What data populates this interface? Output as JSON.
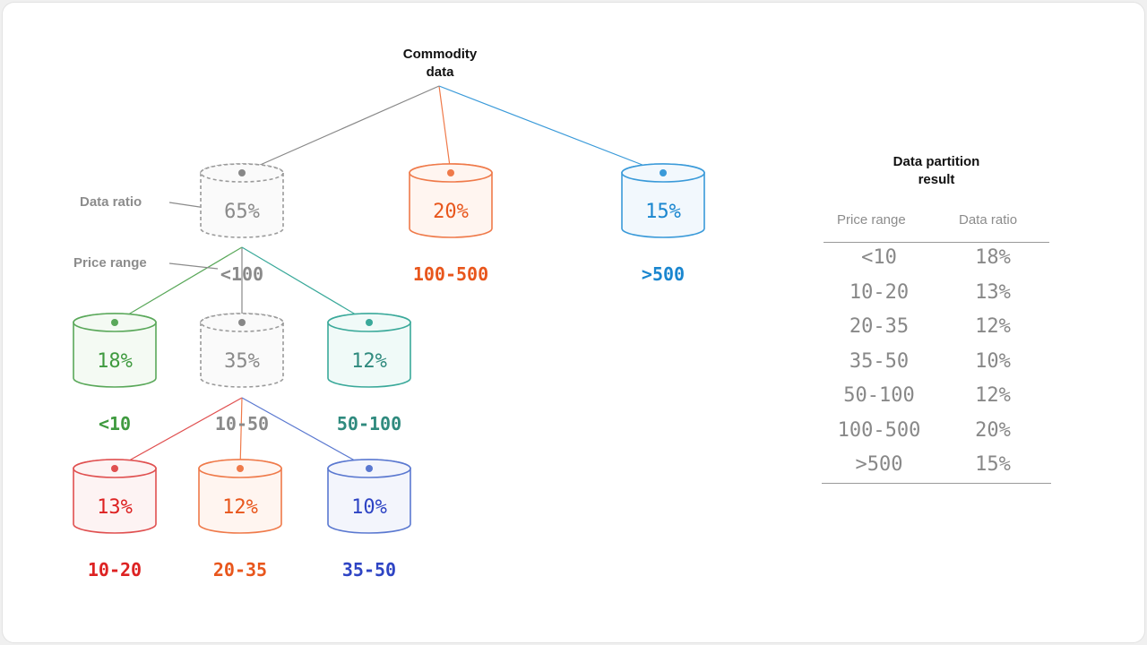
{
  "root": {
    "line1": "Commodity",
    "line2": "data"
  },
  "annotations": {
    "ratio": "Data ratio",
    "price": "Price range"
  },
  "level1": [
    {
      "percent": "65%",
      "range": "<100",
      "color": "#9a9a9a",
      "fill": "#fafafa",
      "dashed": true
    },
    {
      "percent": "20%",
      "range": "100-500",
      "color": "#ef7a4a",
      "fill": "#fff5f0",
      "dashed": false
    },
    {
      "percent": "15%",
      "range": ">500",
      "color": "#3a9ad9",
      "fill": "#f2f8fd",
      "dashed": false
    }
  ],
  "level2": [
    {
      "percent": "18%",
      "range": "<10",
      "color": "#5aa85a",
      "fill": "#f4faf3",
      "dashed": false
    },
    {
      "percent": "35%",
      "range": "10-50",
      "color": "#9a9a9a",
      "fill": "#fafafa",
      "dashed": true
    },
    {
      "percent": "12%",
      "range": "50-100",
      "color": "#3aa99a",
      "fill": "#f0faf8",
      "dashed": false
    }
  ],
  "level3": [
    {
      "percent": "13%",
      "range": "10-20",
      "color": "#e05050",
      "fill": "#fdf3f3",
      "dashed": false
    },
    {
      "percent": "12%",
      "range": "20-35",
      "color": "#ef7a4a",
      "fill": "#fff5f0",
      "dashed": false
    },
    {
      "percent": "10%",
      "range": "35-50",
      "color": "#5a78d0",
      "fill": "#f3f5fc",
      "dashed": false
    }
  ],
  "range_colors": {
    "gray": "#8a8a8a",
    "green": "#3f9a3f",
    "teal": "#2f8a7e",
    "red": "#dd2222",
    "orange": "#e8561c",
    "blue": "#2e44c4",
    "sky": "#1a86cf"
  },
  "result": {
    "title1": "Data partition",
    "title2": "result",
    "col1": "Price range",
    "col2": "Data ratio",
    "rows": [
      {
        "range": "<10",
        "ratio": "18%"
      },
      {
        "range": "10-20",
        "ratio": "13%"
      },
      {
        "range": "20-35",
        "ratio": "12%"
      },
      {
        "range": "35-50",
        "ratio": "10%"
      },
      {
        "range": "50-100",
        "ratio": "12%"
      },
      {
        "range": "100-500",
        "ratio": "20%"
      },
      {
        "range": ">500",
        "ratio": "15%"
      }
    ]
  }
}
